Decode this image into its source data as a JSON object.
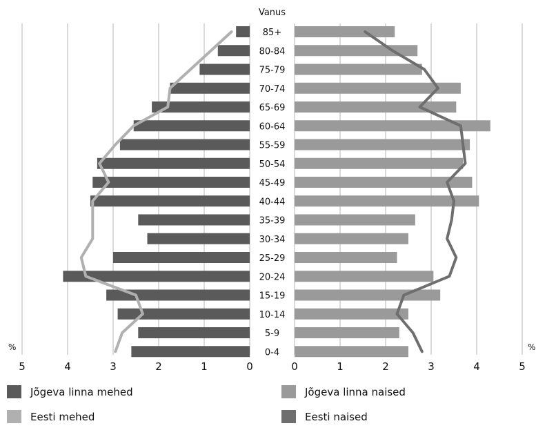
{
  "chart_data": {
    "type": "bar",
    "title": "",
    "center_axis_label": "Vanus",
    "unit_label": "%",
    "age_groups": [
      "85+",
      "80-84",
      "75-79",
      "70-74",
      "65-69",
      "60-64",
      "55-59",
      "50-54",
      "45-49",
      "40-44",
      "35-39",
      "30-34",
      "25-29",
      "20-24",
      "15-19",
      "10-14",
      "5-9",
      "0-4"
    ],
    "x_ticks": [
      "5",
      "4",
      "3",
      "2",
      "1",
      "0"
    ],
    "x_ticks_right": [
      "0",
      "1",
      "2",
      "3",
      "4",
      "5"
    ],
    "xlim": [
      0,
      5
    ],
    "grid": true,
    "series": [
      {
        "name": "Jõgeva linna mehed",
        "kind": "bar",
        "side": "left",
        "color": "#5a5a5a",
        "values": [
          0.3,
          0.7,
          1.1,
          1.75,
          2.15,
          2.55,
          2.85,
          3.35,
          3.45,
          3.5,
          2.45,
          2.25,
          3.0,
          4.1,
          3.15,
          2.9,
          2.45,
          2.6
        ]
      },
      {
        "name": "Jõgeva linna naised",
        "kind": "bar",
        "side": "right",
        "color": "#9a9a9a",
        "values": [
          2.2,
          2.7,
          2.8,
          3.65,
          3.55,
          4.3,
          3.85,
          3.7,
          3.9,
          4.05,
          2.65,
          2.5,
          2.25,
          3.05,
          3.2,
          2.5,
          2.3,
          2.5
        ]
      },
      {
        "name": "Eesti mehed",
        "kind": "line",
        "side": "left",
        "color": "#b0b0b0",
        "values": [
          0.4,
          0.85,
          1.3,
          1.75,
          1.8,
          2.55,
          2.95,
          3.3,
          3.1,
          3.45,
          3.45,
          3.45,
          3.7,
          3.6,
          2.5,
          2.35,
          2.8,
          2.95
        ]
      },
      {
        "name": "Eesti naised",
        "kind": "line",
        "side": "right",
        "color": "#6e6e6e",
        "values": [
          1.55,
          2.15,
          2.85,
          3.15,
          2.75,
          3.65,
          3.7,
          3.75,
          3.35,
          3.5,
          3.45,
          3.35,
          3.55,
          3.4,
          2.4,
          2.25,
          2.6,
          2.8
        ]
      }
    ],
    "legend_placement": "bottom"
  }
}
